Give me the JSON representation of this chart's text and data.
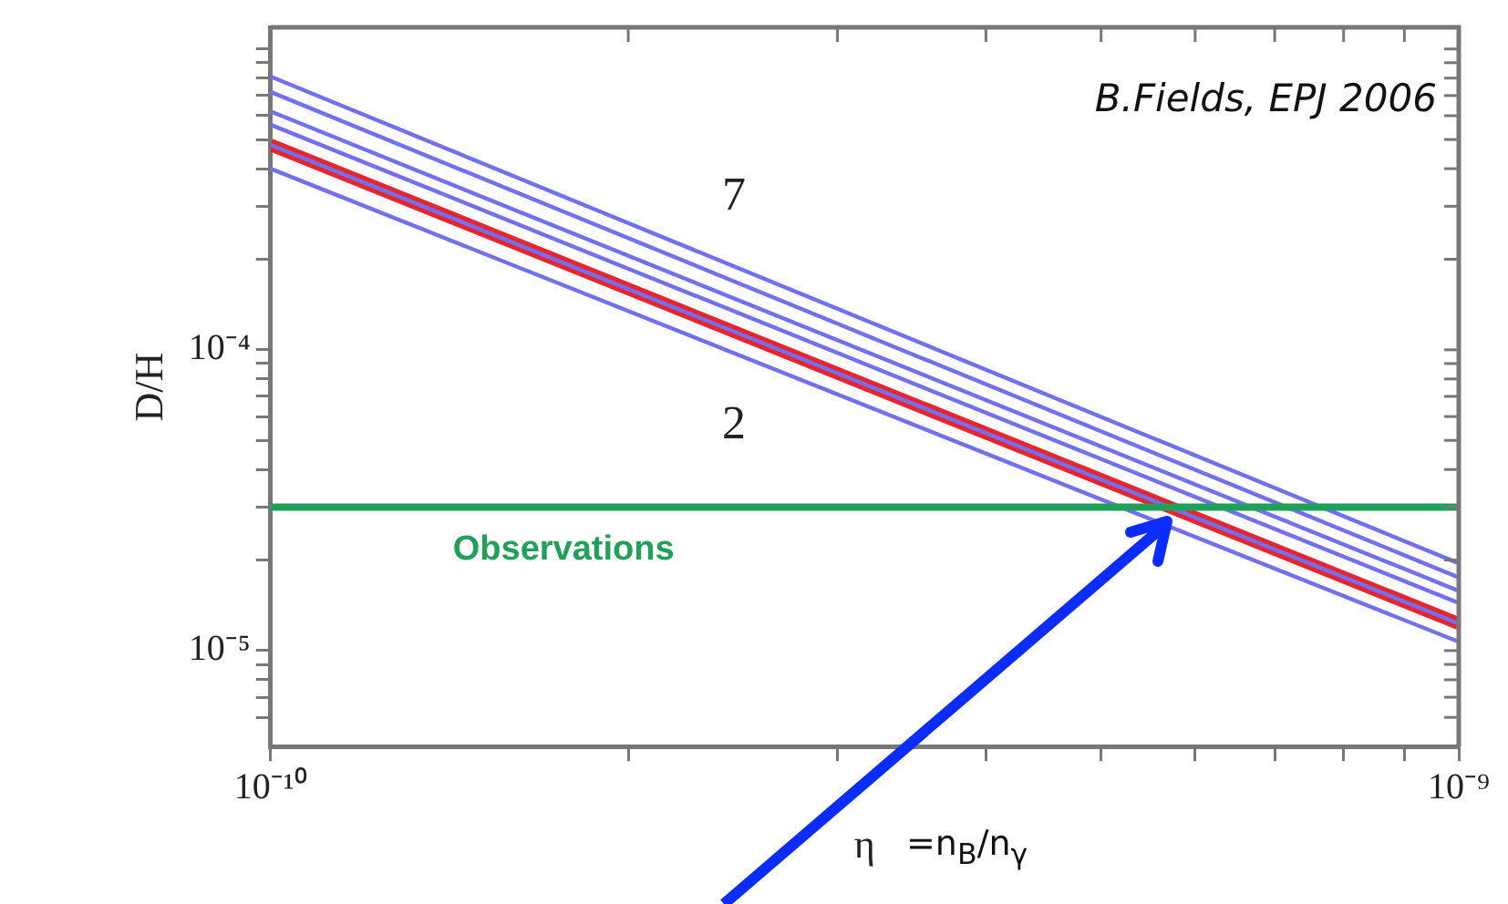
{
  "chart_data": {
    "type": "line",
    "xlabel": "η",
    "ylabel": "D/H",
    "log": "xy",
    "grid": false,
    "legend": false,
    "marker": "none",
    "line_style": "solid",
    "xlim": [
      1e-10,
      1e-09
    ],
    "ylim": [
      4.8e-06,
      0.00118
    ],
    "xticks": [
      {
        "value": 1e-10,
        "label": "10⁻¹⁰"
      },
      {
        "value": 2e-10,
        "label": null
      },
      {
        "value": 3e-10,
        "label": null
      },
      {
        "value": 4e-10,
        "label": null
      },
      {
        "value": 5e-10,
        "label": null
      },
      {
        "value": 6e-10,
        "label": null
      },
      {
        "value": 7e-10,
        "label": null
      },
      {
        "value": 8e-10,
        "label": null
      },
      {
        "value": 9e-10,
        "label": null
      },
      {
        "value": 1e-09,
        "label": "10⁻⁹"
      }
    ],
    "yticks": [
      {
        "value": 6e-06,
        "label": null
      },
      {
        "value": 7e-06,
        "label": null
      },
      {
        "value": 8e-06,
        "label": null
      },
      {
        "value": 9e-06,
        "label": null
      },
      {
        "value": 1e-05,
        "label": "10⁻⁵"
      },
      {
        "value": 2e-05,
        "label": null
      },
      {
        "value": 3e-05,
        "label": null
      },
      {
        "value": 4e-05,
        "label": null
      },
      {
        "value": 5e-05,
        "label": null
      },
      {
        "value": 6e-05,
        "label": null
      },
      {
        "value": 7e-05,
        "label": null
      },
      {
        "value": 8e-05,
        "label": null
      },
      {
        "value": 9e-05,
        "label": null
      },
      {
        "value": 0.0001,
        "label": "10⁻⁴"
      },
      {
        "value": 0.0002,
        "label": null
      },
      {
        "value": 0.0003,
        "label": null
      },
      {
        "value": 0.0004,
        "label": null
      },
      {
        "value": 0.0005,
        "label": null
      },
      {
        "value": 0.0006,
        "label": null
      },
      {
        "value": 0.0007,
        "label": null
      },
      {
        "value": 0.0008,
        "label": null
      },
      {
        "value": 0.0009,
        "label": null
      },
      {
        "value": 0.001,
        "label": null
      }
    ],
    "x": [
      1e-10,
      1e-09
    ],
    "series": [
      {
        "color": "#e8242c",
        "values": [
          0.00048,
          1.23e-05
        ]
      },
      {
        "name": "2",
        "color": "#7070f0",
        "values": [
          0.0004,
          1.07e-05
        ]
      },
      {
        "color": "#7070f0",
        "values": [
          0.00048,
          1.23e-05
        ]
      },
      {
        "color": "#7070f0",
        "values": [
          0.00056,
          1.44e-05
        ]
      },
      {
        "color": "#7070f0",
        "values": [
          0.00062,
          1.58e-05
        ]
      },
      {
        "color": "#7070f0",
        "values": [
          0.00072,
          1.75e-05
        ]
      },
      {
        "name": "7",
        "color": "#7070f0",
        "values": [
          0.00081,
          1.95e-05
        ]
      }
    ],
    "ref_lines": [
      {
        "axis": "y",
        "value": 3e-05,
        "label": "Observations",
        "color": "#21a05a"
      }
    ],
    "annotations": [
      "B.Fields, EPJ 2006",
      "=n$_{B}$/n$_{γ}$"
    ]
  }
}
